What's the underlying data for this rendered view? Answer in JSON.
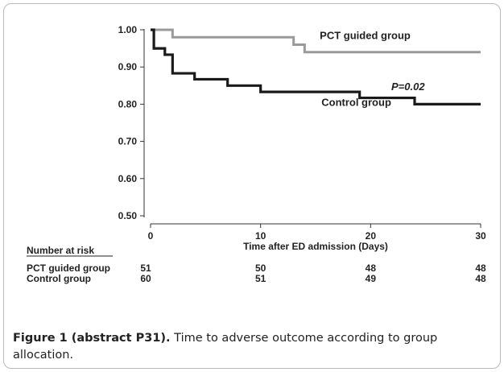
{
  "chart_data": {
    "type": "line",
    "step": true,
    "xlabel": "Time after ED admission (Days)",
    "ylabel": "",
    "xlim": [
      0,
      30
    ],
    "ylim": [
      0.5,
      1.0
    ],
    "x_ticks": [
      0,
      10,
      20,
      30
    ],
    "x_tick_labels": [
      "0",
      "10",
      "20",
      "30"
    ],
    "y_ticks": [
      0.5,
      0.6,
      0.7,
      0.8,
      0.9,
      1.0
    ],
    "y_tick_labels": [
      "0.50",
      "0.60",
      "0.70",
      "0.80",
      "0.90",
      "1.00"
    ],
    "grid": false,
    "series": [
      {
        "name": "PCT guided group",
        "color": "#9a9a9a",
        "x": [
          0,
          2,
          13,
          14,
          30
        ],
        "y": [
          1.0,
          0.98,
          0.96,
          0.94,
          0.94
        ]
      },
      {
        "name": "Control group",
        "color": "#1a1a1a",
        "x": [
          0,
          0.3,
          1.3,
          2,
          4,
          7,
          10,
          19,
          24,
          30
        ],
        "y": [
          1.0,
          0.95,
          0.933,
          0.883,
          0.867,
          0.85,
          0.833,
          0.817,
          0.8,
          0.8
        ]
      }
    ],
    "annotations": [
      {
        "text": "PCT guided group",
        "x": 19.5,
        "y": 0.975
      },
      {
        "text": "Control group",
        "x": 18.7,
        "y": 0.795
      },
      {
        "text": "P=0.02",
        "x": 23.4,
        "y": 0.838,
        "italic": true
      }
    ],
    "risk_table": {
      "title": "Number at risk",
      "times": [
        0,
        10,
        20,
        30
      ],
      "rows": [
        {
          "label": "PCT guided group",
          "values": [
            "51",
            "50",
            "48",
            "48"
          ]
        },
        {
          "label": "Control group",
          "values": [
            "60",
            "51",
            "49",
            "48"
          ]
        }
      ]
    }
  },
  "caption": {
    "bold": "Figure 1 (abstract P31).",
    "text": " Time to adverse outcome according to group allocation."
  }
}
